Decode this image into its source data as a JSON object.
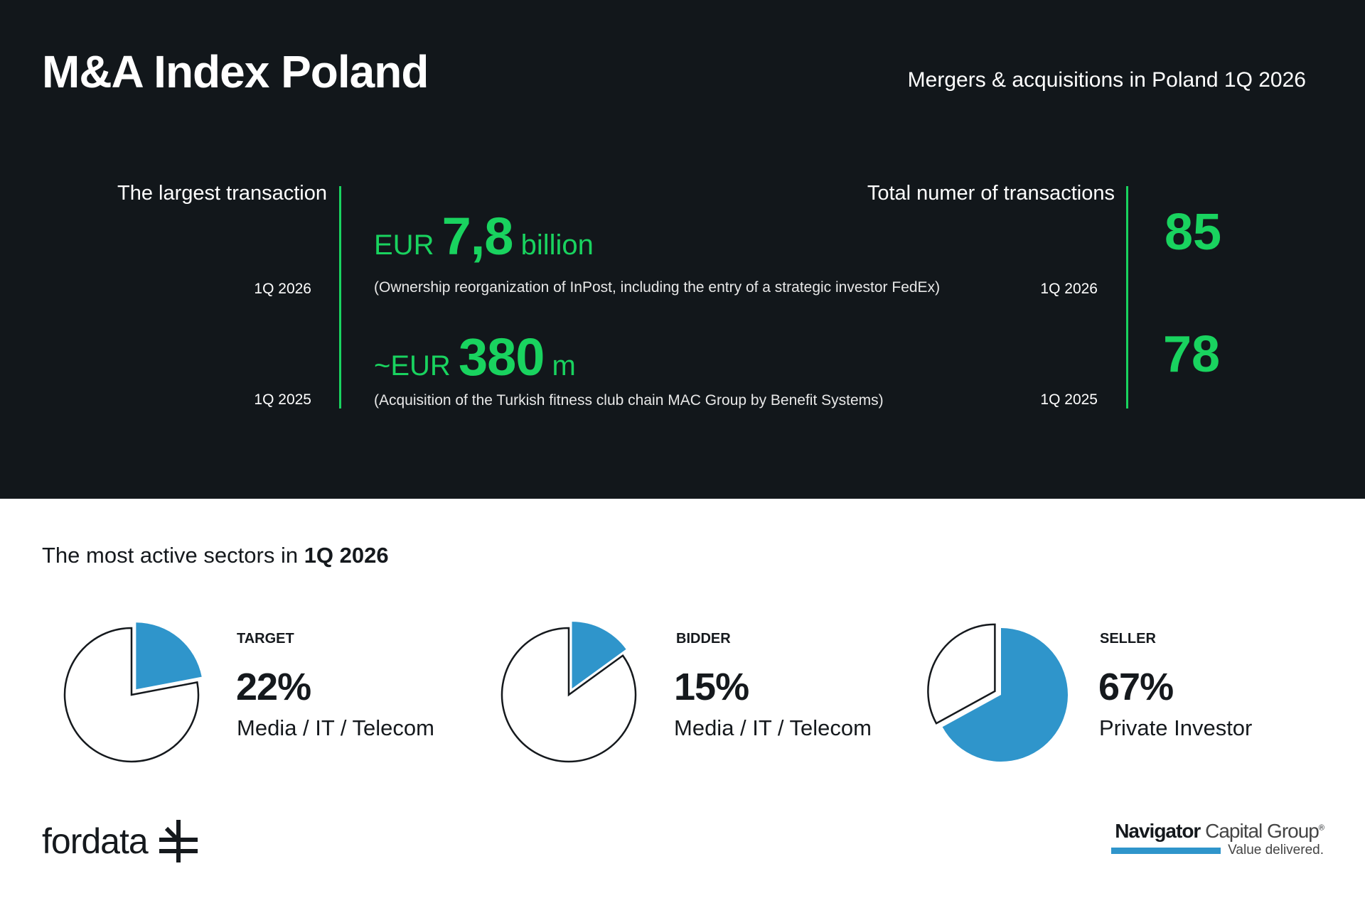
{
  "header": {
    "title": "M&A Index Poland",
    "subtitle": "Mergers & acquisitions in Poland 1Q 2026"
  },
  "largest": {
    "label": "The largest transaction",
    "rows": [
      {
        "period": "1Q 2026",
        "prefix": "EUR",
        "value": "7,8",
        "unit": "billion",
        "description": "(Ownership reorganization of InPost, including the entry of a strategic investor FedEx)"
      },
      {
        "period": "1Q 2025",
        "prefix": "~EUR",
        "value": "380",
        "unit": "m",
        "description": "(Acquisition of the Turkish fitness club chain MAC Group by Benefit Systems)"
      }
    ]
  },
  "total": {
    "label": "Total numer of transactions",
    "rows": [
      {
        "period": "1Q 2026",
        "value": "85"
      },
      {
        "period": "1Q 2025",
        "value": "78"
      }
    ]
  },
  "sectors": {
    "title_prefix": "The most active sectors in ",
    "title_bold": "1Q 2026",
    "items": [
      {
        "role": "TARGET",
        "percent_label": "22%",
        "percent": 22,
        "sector": "Media / IT / Telecom"
      },
      {
        "role": "BIDDER",
        "percent_label": "15%",
        "percent": 15,
        "sector": "Media / IT / Telecom"
      },
      {
        "role": "SELLER",
        "percent_label": "67%",
        "percent": 67,
        "sector": "Private Investor"
      }
    ]
  },
  "logos": {
    "left": "fordata",
    "right_bold": "Navigator",
    "right_rest": " Capital Group",
    "right_reg": "®",
    "tagline": "Value delivered."
  },
  "colors": {
    "green": "#19d35f",
    "blue": "#2f95cb",
    "dark": "#12171b"
  }
}
